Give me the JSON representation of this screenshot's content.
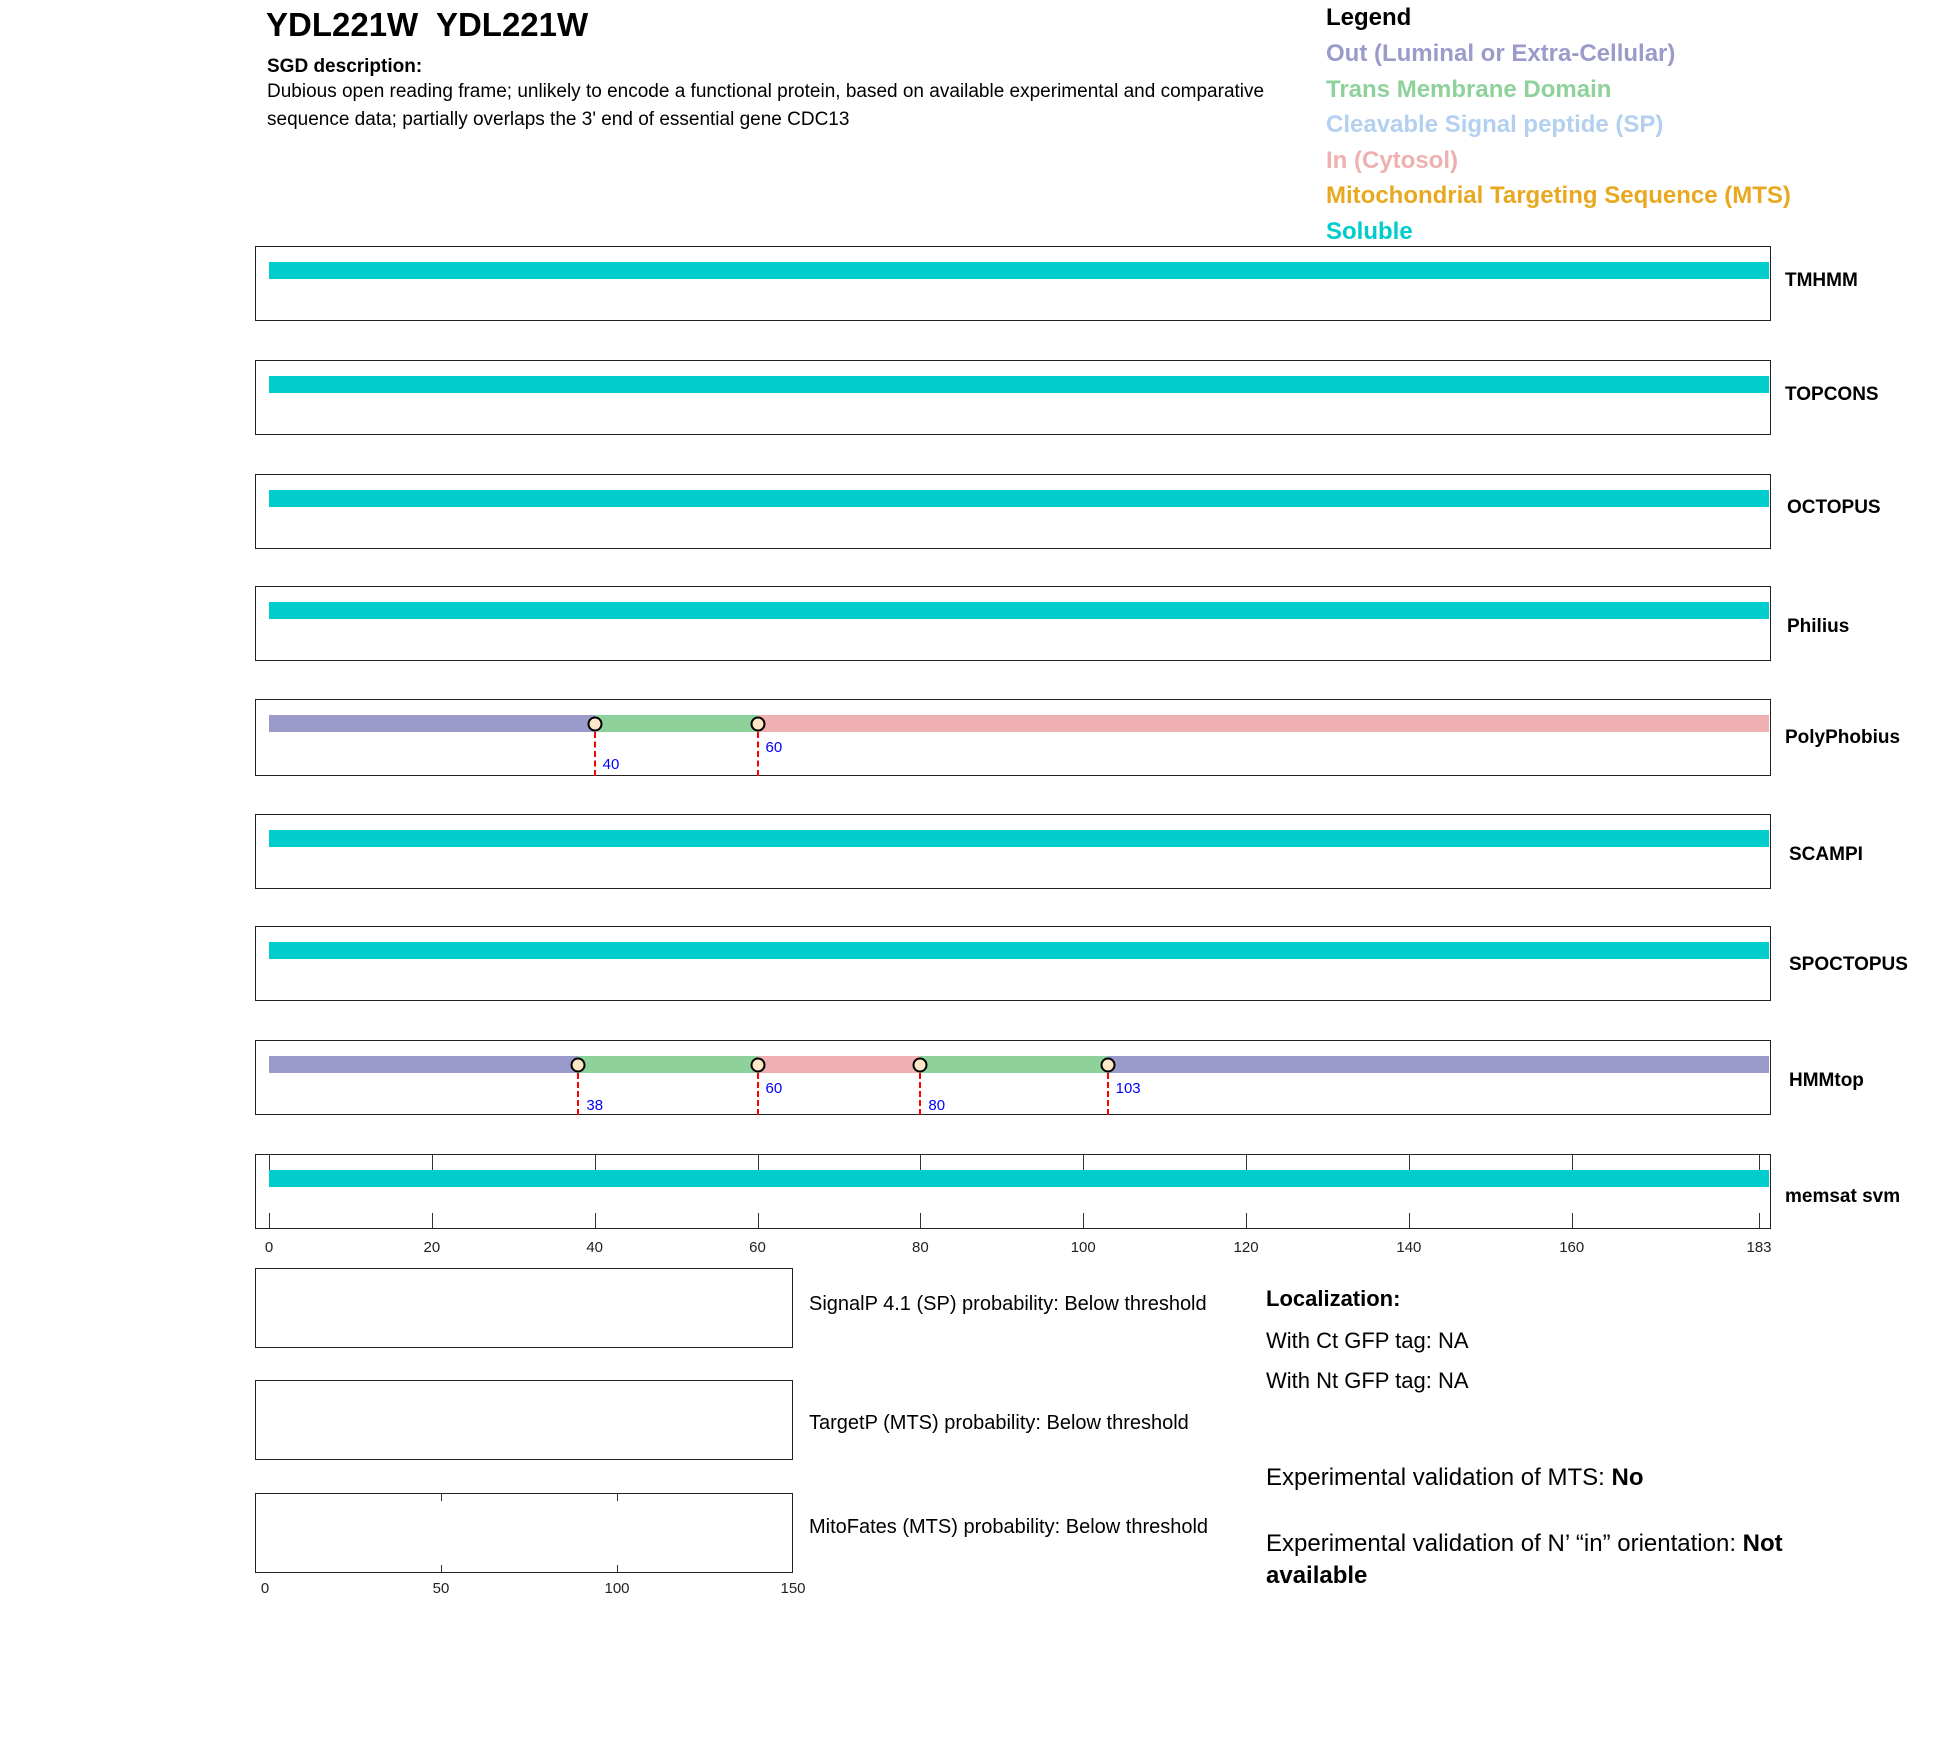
{
  "header": {
    "title": "YDL221W  YDL221W",
    "desc_heading": "SGD description:",
    "description": "Dubious open reading frame; unlikely to encode a functional protein, based on available experimental and comparative sequence data; partially overlaps the 3' end of essential gene CDC13"
  },
  "legend": {
    "heading": "Legend",
    "items": [
      {
        "label": "Out (Luminal or Extra-Cellular)",
        "color": "#9b9bcb",
        "key": "out"
      },
      {
        "label": "Trans Membrane Domain",
        "color": "#8fd19a",
        "key": "tm"
      },
      {
        "label": "Cleavable Signal peptide (SP)",
        "color": "#b4d0f0",
        "key": "sp"
      },
      {
        "label": "In (Cytosol)",
        "color": "#eeb0b0",
        "key": "in"
      },
      {
        "label": "Mitochondrial Targeting Sequence (MTS)",
        "color": "#e8a820",
        "key": "mts"
      },
      {
        "label": "Soluble",
        "color": "#00cccc",
        "key": "soluble"
      }
    ]
  },
  "chart_data": {
    "type": "bar",
    "xlim": [
      0,
      183
    ],
    "x_ticks": [
      "0",
      "20",
      "40",
      "60",
      "80",
      "100",
      "120",
      "140",
      "160",
      "183"
    ],
    "predictors": [
      {
        "name": "TMHMM",
        "segments": [
          {
            "start": 0,
            "end": 183,
            "type": "soluble"
          }
        ],
        "boundaries": []
      },
      {
        "name": "TOPCONS",
        "segments": [
          {
            "start": 0,
            "end": 183,
            "type": "soluble"
          }
        ],
        "boundaries": []
      },
      {
        "name": "OCTOPUS",
        "segments": [
          {
            "start": 0,
            "end": 183,
            "type": "soluble"
          }
        ],
        "boundaries": []
      },
      {
        "name": "Philius",
        "segments": [
          {
            "start": 0,
            "end": 183,
            "type": "soluble"
          }
        ],
        "boundaries": []
      },
      {
        "name": "PolyPhobius",
        "segments": [
          {
            "start": 0,
            "end": 40,
            "type": "out"
          },
          {
            "start": 40,
            "end": 60,
            "type": "tm"
          },
          {
            "start": 60,
            "end": 183,
            "type": "in"
          }
        ],
        "boundaries": [
          "40",
          "60"
        ]
      },
      {
        "name": "SCAMPI",
        "segments": [
          {
            "start": 0,
            "end": 183,
            "type": "soluble"
          }
        ],
        "boundaries": []
      },
      {
        "name": "SPOCTOPUS",
        "segments": [
          {
            "start": 0,
            "end": 183,
            "type": "soluble"
          }
        ],
        "boundaries": []
      },
      {
        "name": "HMMtop",
        "segments": [
          {
            "start": 0,
            "end": 38,
            "type": "out"
          },
          {
            "start": 38,
            "end": 60,
            "type": "tm"
          },
          {
            "start": 60,
            "end": 80,
            "type": "in"
          },
          {
            "start": 80,
            "end": 103,
            "type": "tm"
          },
          {
            "start": 103,
            "end": 183,
            "type": "out"
          }
        ],
        "boundaries": [
          "38",
          "60",
          "80",
          "103"
        ]
      },
      {
        "name": "memsat svm",
        "segments": [
          {
            "start": 0,
            "end": 183,
            "type": "soluble"
          }
        ],
        "boundaries": []
      }
    ],
    "signal_xlim": [
      0,
      150
    ],
    "signal_ticks": [
      "0",
      "50",
      "100",
      "150"
    ]
  },
  "signals": [
    {
      "text": "SignalP 4.1 (SP) probability: Below threshold"
    },
    {
      "text": "TargetP (MTS) probability: Below threshold"
    },
    {
      "text": "MitoFates (MTS) probability: Below threshold"
    }
  ],
  "localization": {
    "heading": "Localization:",
    "ct": "With Ct GFP tag: NA",
    "nt": "With Nt GFP tag: NA",
    "mts_label": "Experimental validation of MTS: ",
    "mts_value": "No",
    "orient_label": "Experimental validation of N’ “in” orientation: ",
    "orient_value": "Not available"
  }
}
